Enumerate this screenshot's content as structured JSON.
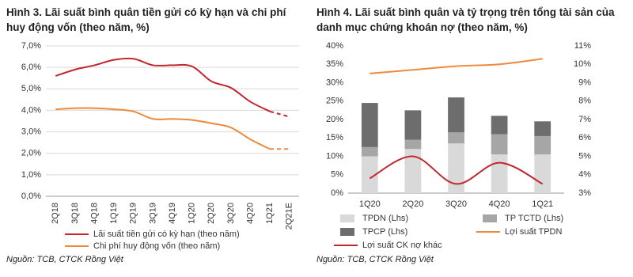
{
  "chart_data": [
    {
      "type": "line",
      "title": "Hình 3. Lãi suất bình quân tiền gửi có kỳ hạn và chi phí huy động vốn (theo năm, %)",
      "categories": [
        "2Q18",
        "3Q18",
        "4Q18",
        "1Q19",
        "2Q19",
        "3Q19",
        "4Q19",
        "1Q20",
        "2Q20",
        "3Q20",
        "4Q20",
        "1Q21",
        "2Q21E"
      ],
      "series": [
        {
          "name": "Lãi suất tiền gửi có kỳ hạn (theo năm)",
          "color": "#c0282d",
          "dash_last_segment": true,
          "values": [
            5.6,
            5.9,
            6.1,
            6.35,
            6.4,
            6.1,
            6.1,
            6.05,
            5.35,
            5.05,
            4.4,
            3.95,
            3.7
          ]
        },
        {
          "name": "Chi phí huy động vốn (theo năm)",
          "color": "#ed8a3c",
          "dash_last_segment": true,
          "values": [
            4.05,
            4.1,
            4.1,
            4.05,
            3.95,
            3.6,
            3.6,
            3.55,
            3.4,
            3.2,
            2.65,
            2.2,
            2.2
          ]
        }
      ],
      "ylim": [
        0,
        7
      ],
      "yticks": [
        {
          "value": 0,
          "label": "0,0%"
        },
        {
          "value": 1,
          "label": "1,0%"
        },
        {
          "value": 2,
          "label": "2,0%"
        },
        {
          "value": 3,
          "label": "3,0%"
        },
        {
          "value": 4,
          "label": "4,0%"
        },
        {
          "value": 5,
          "label": "5,0%"
        },
        {
          "value": 6,
          "label": "6,0%"
        },
        {
          "value": 7,
          "label": "7,0%"
        }
      ],
      "grid": true,
      "smooth": true,
      "source": "Nguồn: TCB, CTCK Rồng Việt"
    },
    {
      "type": "bar",
      "title": "Hình 4. Lãi suất bình quân và tỷ trọng trên tổng tài sản của danh mục chứng khoán nợ (theo năm, %)",
      "categories": [
        "1Q20",
        "2Q20",
        "3Q20",
        "4Q20",
        "1Q21"
      ],
      "series": [
        {
          "name": "TPDN (Lhs)",
          "color": "#d9d9d9",
          "values": [
            10,
            12,
            13.5,
            10.5,
            10.5
          ]
        },
        {
          "name": "TP TCTD (Lhs)",
          "color": "#a6a6a6",
          "values": [
            2.5,
            2.5,
            3,
            5.5,
            5
          ]
        },
        {
          "name": "TPCP (Lhs)",
          "color": "#6d6d6d",
          "values": [
            12,
            8,
            9.5,
            5,
            4
          ]
        },
        {
          "name": "Lợi suất TPDN",
          "color": "#ed8a3c",
          "axis": "y2",
          "values": [
            9.5,
            9.7,
            9.9,
            10.0,
            10.3
          ]
        },
        {
          "name": "Lợi suất CK nợ khác",
          "color": "#c0282d",
          "axis": "y2",
          "values": [
            3.8,
            5.0,
            3.5,
            4.65,
            3.5
          ]
        }
      ],
      "ylim": [
        0,
        40
      ],
      "yticks": [
        {
          "value": 0,
          "label": "0%"
        },
        {
          "value": 5,
          "label": "5%"
        },
        {
          "value": 10,
          "label": "10%"
        },
        {
          "value": 15,
          "label": "15%"
        },
        {
          "value": 20,
          "label": "20%"
        },
        {
          "value": 25,
          "label": "25%"
        },
        {
          "value": 30,
          "label": "30%"
        },
        {
          "value": 35,
          "label": "35%"
        },
        {
          "value": 40,
          "label": "40%"
        }
      ],
      "y2lim": [
        3,
        11
      ],
      "y2ticks": [
        {
          "value": 3,
          "label": "3%"
        },
        {
          "value": 4,
          "label": "4%"
        },
        {
          "value": 5,
          "label": "5%"
        },
        {
          "value": 6,
          "label": "6%"
        },
        {
          "value": 7,
          "label": "7%"
        },
        {
          "value": 8,
          "label": "8%"
        },
        {
          "value": 9,
          "label": "9%"
        },
        {
          "value": 10,
          "label": "10%"
        },
        {
          "value": 11,
          "label": "11%"
        }
      ],
      "grid": false,
      "smooth": true,
      "source": "Nguồn: TCB, CTCK Rồng Việt"
    }
  ]
}
